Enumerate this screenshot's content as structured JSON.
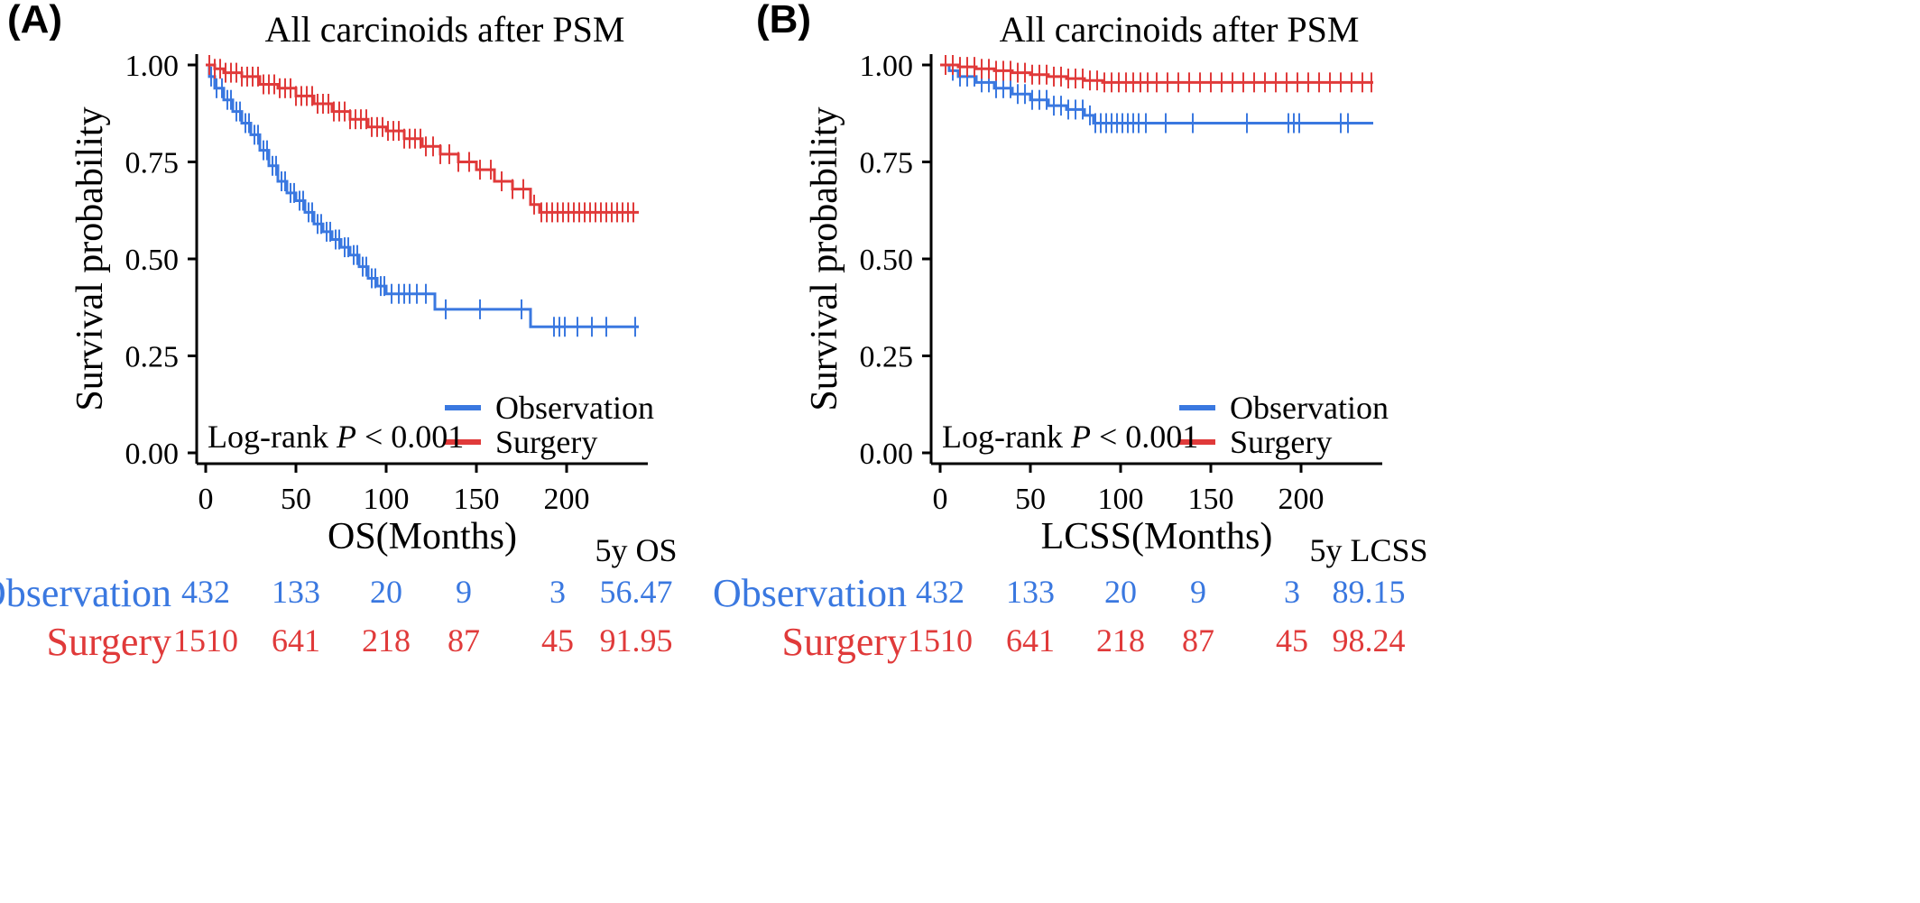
{
  "colors": {
    "observation": "#3a78e0",
    "surgery": "#e03a3a",
    "axis": "#000000"
  },
  "chart_data": [
    {
      "type": "line",
      "subtype": "kaplan-meier",
      "panel_label": "(A)",
      "title": "All carcinoids after PSM",
      "xlabel": "OS(Months)",
      "ylabel": "Survival probability",
      "xlim": [
        -5,
        245
      ],
      "ylim": [
        0,
        1
      ],
      "x_ticks": [
        "0",
        "50",
        "100",
        "150",
        "200"
      ],
      "y_ticks": [
        "0.00",
        "0.25",
        "0.50",
        "0.75",
        "1.00"
      ],
      "legend": [
        "Observation",
        "Surgery"
      ],
      "legend_position": "bottom-right",
      "stat_prefix": "Log-rank",
      "stat_p": "P",
      "stat_rest": " < 0.001",
      "series": [
        {
          "name": "Observation",
          "color": "#3a78e0",
          "x": [
            0,
            2,
            5,
            10,
            15,
            20,
            25,
            30,
            35,
            40,
            45,
            50,
            55,
            60,
            65,
            70,
            75,
            80,
            85,
            90,
            95,
            100,
            110,
            120,
            127,
            140,
            160,
            180,
            200,
            220,
            240
          ],
          "y": [
            1.0,
            0.97,
            0.94,
            0.91,
            0.88,
            0.85,
            0.82,
            0.78,
            0.74,
            0.7,
            0.67,
            0.65,
            0.62,
            0.59,
            0.57,
            0.55,
            0.53,
            0.51,
            0.48,
            0.45,
            0.43,
            0.41,
            0.41,
            0.41,
            0.37,
            0.37,
            0.37,
            0.325,
            0.325,
            0.325,
            0.325
          ],
          "censor_x": [
            3,
            6,
            9,
            12,
            14,
            17,
            19,
            22,
            24,
            27,
            29,
            32,
            34,
            37,
            39,
            42,
            44,
            47,
            49,
            52,
            54,
            57,
            59,
            62,
            64,
            67,
            69,
            72,
            74,
            77,
            79,
            82,
            84,
            87,
            89,
            92,
            94,
            97,
            99,
            103,
            107,
            110,
            113,
            117,
            122,
            133,
            152,
            175,
            193,
            196,
            199,
            206,
            214,
            222,
            238
          ]
        },
        {
          "name": "Surgery",
          "color": "#e03a3a",
          "x": [
            0,
            5,
            10,
            20,
            30,
            40,
            50,
            60,
            70,
            80,
            90,
            100,
            110,
            120,
            130,
            140,
            150,
            160,
            170,
            180,
            185,
            190,
            200,
            220,
            240
          ],
          "y": [
            1.0,
            0.99,
            0.98,
            0.97,
            0.95,
            0.94,
            0.92,
            0.9,
            0.88,
            0.86,
            0.84,
            0.83,
            0.81,
            0.79,
            0.77,
            0.75,
            0.73,
            0.7,
            0.68,
            0.64,
            0.62,
            0.62,
            0.62,
            0.62,
            0.62
          ],
          "censor_x": [
            2,
            5,
            8,
            11,
            14,
            17,
            20,
            23,
            26,
            29,
            32,
            35,
            38,
            41,
            44,
            47,
            50,
            53,
            56,
            59,
            62,
            65,
            68,
            71,
            74,
            77,
            80,
            83,
            86,
            89,
            92,
            95,
            98,
            101,
            104,
            107,
            110,
            113,
            116,
            119,
            122,
            126,
            130,
            135,
            140,
            146,
            152,
            158,
            164,
            170,
            176,
            182,
            186,
            189,
            192,
            195,
            198,
            201,
            204,
            207,
            210,
            213,
            216,
            219,
            222,
            225,
            228,
            231,
            234,
            237
          ]
        }
      ],
      "risk_table": {
        "time_points": [
          0,
          50,
          100,
          150,
          200
        ],
        "summary_header": "5y OS",
        "rows": [
          {
            "name": "Observation",
            "color": "#3a78e0",
            "values": [
              "432",
              "133",
              "20",
              "9",
              "3"
            ],
            "summary": "56.47"
          },
          {
            "name": "Surgery",
            "color": "#e03a3a",
            "values": [
              "1510",
              "641",
              "218",
              "87",
              "45"
            ],
            "summary": "91.95"
          }
        ]
      }
    },
    {
      "type": "line",
      "subtype": "kaplan-meier",
      "panel_label": "(B)",
      "title": "All carcinoids after PSM",
      "xlabel": "LCSS(Months)",
      "ylabel": "Survival probability",
      "xlim": [
        -5,
        245
      ],
      "ylim": [
        0,
        1
      ],
      "x_ticks": [
        "0",
        "50",
        "100",
        "150",
        "200"
      ],
      "y_ticks": [
        "0.00",
        "0.25",
        "0.50",
        "0.75",
        "1.00"
      ],
      "legend": [
        "Observation",
        "Surgery"
      ],
      "legend_position": "bottom-right",
      "stat_prefix": "Log-rank",
      "stat_p": "P",
      "stat_rest": " < 0.001",
      "series": [
        {
          "name": "Observation",
          "color": "#3a78e0",
          "x": [
            0,
            5,
            10,
            20,
            30,
            40,
            50,
            60,
            70,
            80,
            85,
            100,
            150,
            200,
            240
          ],
          "y": [
            1.0,
            0.985,
            0.97,
            0.955,
            0.94,
            0.925,
            0.91,
            0.895,
            0.885,
            0.87,
            0.85,
            0.85,
            0.85,
            0.85,
            0.85
          ],
          "censor_x": [
            3,
            7,
            11,
            15,
            19,
            23,
            27,
            31,
            35,
            39,
            43,
            47,
            51,
            55,
            59,
            63,
            67,
            71,
            75,
            79,
            83,
            86,
            89,
            92,
            95,
            98,
            101,
            104,
            107,
            110,
            114,
            125,
            140,
            170,
            193,
            196,
            199,
            222,
            226
          ]
        },
        {
          "name": "Surgery",
          "color": "#e03a3a",
          "x": [
            0,
            10,
            20,
            30,
            40,
            50,
            60,
            70,
            80,
            90,
            100,
            200,
            240
          ],
          "y": [
            1.0,
            0.995,
            0.99,
            0.985,
            0.98,
            0.975,
            0.97,
            0.965,
            0.96,
            0.955,
            0.955,
            0.955,
            0.955
          ],
          "censor_x": [
            3,
            7,
            11,
            15,
            19,
            23,
            27,
            31,
            35,
            39,
            43,
            47,
            51,
            55,
            59,
            63,
            67,
            71,
            75,
            79,
            83,
            87,
            91,
            95,
            99,
            103,
            107,
            111,
            115,
            120,
            126,
            132,
            138,
            144,
            150,
            156,
            162,
            168,
            174,
            180,
            186,
            192,
            198,
            204,
            210,
            216,
            222,
            228,
            234,
            239
          ]
        }
      ],
      "risk_table": {
        "time_points": [
          0,
          50,
          100,
          150,
          200
        ],
        "summary_header": "5y LCSS",
        "rows": [
          {
            "name": "Observation",
            "color": "#3a78e0",
            "values": [
              "432",
              "133",
              "20",
              "9",
              "3"
            ],
            "summary": "89.15"
          },
          {
            "name": "Surgery",
            "color": "#e03a3a",
            "values": [
              "1510",
              "641",
              "218",
              "87",
              "45"
            ],
            "summary": "98.24"
          }
        ]
      }
    }
  ]
}
